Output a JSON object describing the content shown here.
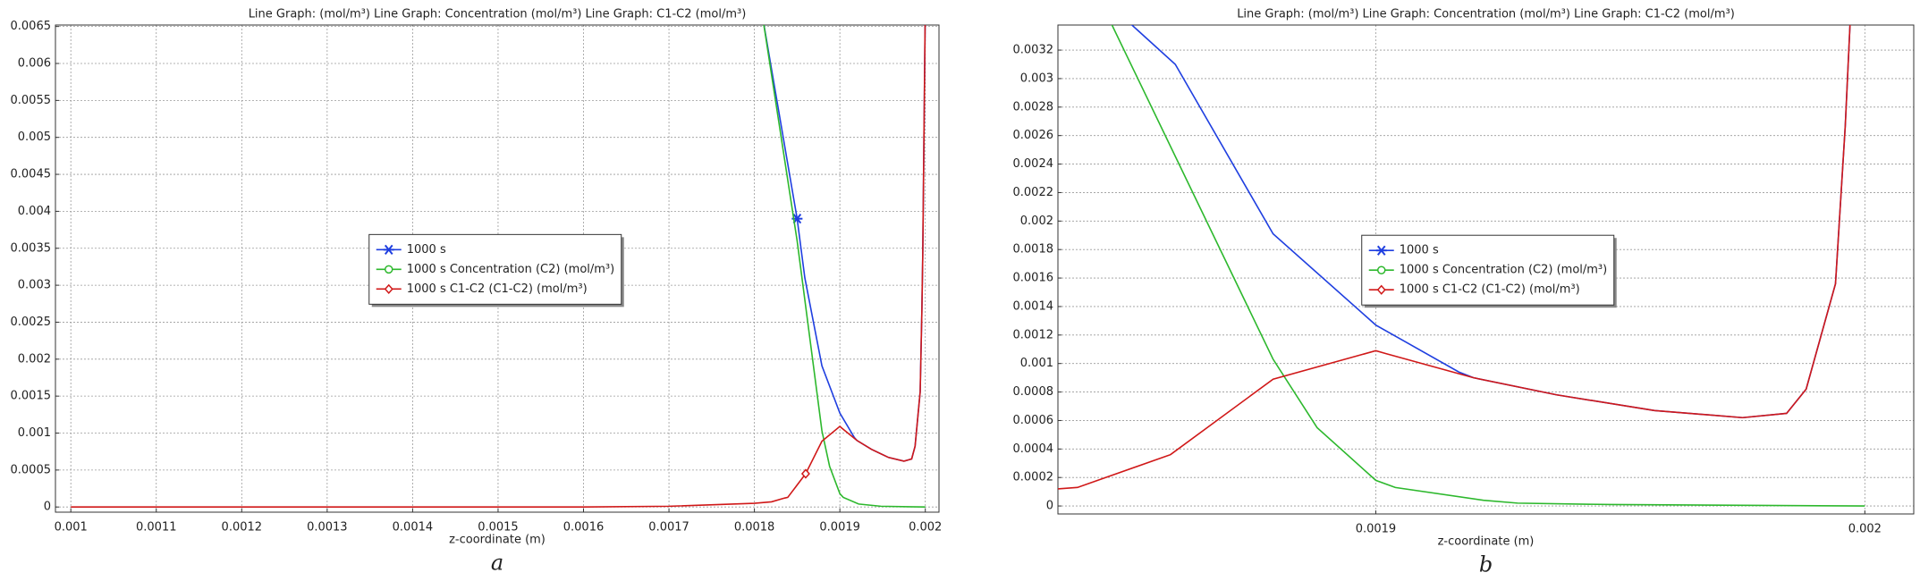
{
  "chart_data": [
    {
      "type": "line",
      "title": "Line Graph:  (mol/m³)  Line Graph: Concentration (mol/m³)  Line Graph: C1-C2 (mol/m³)",
      "x_label": "z-coordinate (m)",
      "panel_label": "a",
      "xlim": [
        0.000982,
        0.002016
      ],
      "xticks": [
        0.001,
        0.0011,
        0.0012,
        0.0013,
        0.0014,
        0.0015,
        0.0016,
        0.0017,
        0.0018,
        0.0019,
        0.002
      ],
      "ylim": [
        -7e-05,
        0.00652
      ],
      "yticks": [
        0,
        0.0005,
        0.001,
        0.0015,
        0.002,
        0.0025,
        0.003,
        0.0035,
        0.004,
        0.0045,
        0.005,
        0.0055,
        0.006,
        0.0065
      ],
      "grid": true,
      "legend": "center",
      "series": [
        {
          "name": "1000 s",
          "color": "#1f3fe0",
          "marker": "star",
          "marker_points": [
            1
          ],
          "x": [
            0.00181,
            0.00185,
            0.001859,
            0.001879,
            0.0019,
            0.001917,
            0.00192,
            0.001937,
            0.001957,
            0.001975,
            0.001984,
            0.001988,
            0.001994,
            0.001996,
            0.001997,
            0.002
          ],
          "values": [
            0.0066,
            0.0039,
            0.0031,
            0.00191,
            0.00127,
            0.00094,
            0.0009,
            0.00078,
            0.00067,
            0.00062,
            0.00065,
            0.00082,
            0.00156,
            0.00267,
            0.0034,
            0.0068
          ]
        },
        {
          "name": "1000 s Concentration (C2) (mol/m³)",
          "color": "#2db82d",
          "marker": "circle",
          "marker_points": [],
          "x": [
            0.00181,
            0.00185,
            0.001879,
            0.001888,
            0.0019,
            0.001904,
            0.001922,
            0.001948,
            0.002
          ],
          "values": [
            0.0066,
            0.0036,
            0.00103,
            0.00055,
            0.00018,
            0.00013,
            4e-05,
            1e-05,
            0
          ]
        },
        {
          "name": "1000 s C1-C2 (C1-C2) (mol/m³)",
          "color": "#d01818",
          "marker": "diamond",
          "marker_points": [
            7
          ],
          "x": [
            0.001,
            0.0016,
            0.0017,
            0.0018,
            0.00182,
            0.001835,
            0.001839,
            0.00186,
            0.001879,
            0.0019,
            0.001902,
            0.00192,
            0.001937,
            0.001957,
            0.001975,
            0.001984,
            0.001988,
            0.001994,
            0.001996,
            0.001997,
            0.002
          ],
          "values": [
            0,
            0,
            1e-05,
            5e-05,
            7e-05,
            0.00012,
            0.00013,
            0.00045,
            0.00089,
            0.00109,
            0.00107,
            0.0009,
            0.00078,
            0.00067,
            0.00062,
            0.00065,
            0.00082,
            0.00156,
            0.00267,
            0.0034,
            0.0068
          ]
        }
      ]
    },
    {
      "type": "line",
      "title": "Line Graph:  (mol/m³)  Line Graph: Concentration (mol/m³)  Line Graph: C1-C2 (mol/m³)",
      "x_label": "z-coordinate (m)",
      "panel_label": "b",
      "xlim": [
        0.001835,
        0.00201
      ],
      "xticks": [
        0.0019,
        0.002
      ],
      "ylim": [
        -5.6e-05,
        0.003376
      ],
      "yticks": [
        0,
        0.0002,
        0.0004,
        0.0006,
        0.0008,
        0.001,
        0.0012,
        0.0014,
        0.0016,
        0.0018,
        0.002,
        0.0022,
        0.0024,
        0.0026,
        0.0028,
        0.003,
        0.0032
      ],
      "grid": true,
      "legend": "center",
      "series": [
        {
          "name": "1000 s",
          "color": "#1f3fe0",
          "marker": "star",
          "marker_points": [],
          "x": [
            0.00185,
            0.001859,
            0.001879,
            0.0019,
            0.001917,
            0.00192,
            0.001937,
            0.001957,
            0.001975,
            0.001984,
            0.001988,
            0.001994,
            0.001996,
            0.001997
          ],
          "values": [
            0.00338,
            0.0031,
            0.00191,
            0.00127,
            0.00094,
            0.0009,
            0.00078,
            0.00067,
            0.00062,
            0.00065,
            0.00082,
            0.00156,
            0.00267,
            0.0034
          ]
        },
        {
          "name": "1000 s Concentration (C2) (mol/m³)",
          "color": "#2db82d",
          "marker": "circle",
          "marker_points": [],
          "x": [
            0.001846,
            0.001879,
            0.001888,
            0.0019,
            0.001904,
            0.001922,
            0.001929,
            0.001948,
            0.002
          ],
          "values": [
            0.00338,
            0.00103,
            0.00055,
            0.00018,
            0.00013,
            4e-05,
            2e-05,
            1e-05,
            0
          ]
        },
        {
          "name": "1000 s C1-C2 (C1-C2) (mol/m³)",
          "color": "#d01818",
          "marker": "diamond",
          "marker_points": [],
          "x": [
            0.001835,
            0.001839,
            0.001858,
            0.001879,
            0.0019,
            0.001902,
            0.00192,
            0.001937,
            0.001957,
            0.001975,
            0.001984,
            0.001988,
            0.001994,
            0.001996,
            0.001997
          ],
          "values": [
            0.00012,
            0.00013,
            0.00036,
            0.00089,
            0.00109,
            0.00107,
            0.0009,
            0.00078,
            0.00067,
            0.00062,
            0.00065,
            0.00082,
            0.00156,
            0.00267,
            0.0034
          ]
        }
      ]
    }
  ]
}
